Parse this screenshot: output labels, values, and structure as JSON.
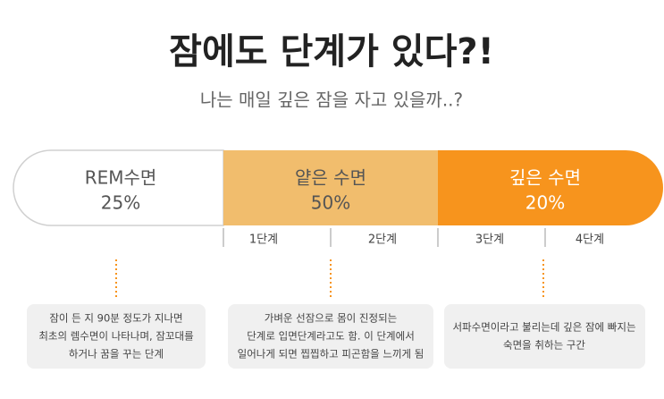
{
  "header": {
    "title": "잠에도 단계가 있다?!",
    "subtitle": "나는 매일 깊은 잠을 자고 있을까..?"
  },
  "stages": [
    {
      "name": "REM수면",
      "percent": "25%"
    },
    {
      "name": "얕은 수면",
      "percent": "50%"
    },
    {
      "name": "깊은 수면",
      "percent": "20%"
    }
  ],
  "steps": [
    "1단계",
    "2단계",
    "3단계",
    "4단계"
  ],
  "notes": [
    [
      "잠이 든 지 90분 정도가 지나면",
      "최초의 렘수면이 나타나며, 잠꼬대를",
      "하거나 꿈을 꾸는 단계"
    ],
    [
      "가벼운 선잠으로 몸이 진정되는",
      "단계로 입면단계라고도 함. 이 단계에서",
      "일어나게 되면 찝찝하고 피곤함을 느끼게 됨"
    ],
    [
      "서파수면이라고 불리는데 깊은 잠에 빠지는",
      "숙면을 취하는 구간"
    ]
  ]
}
